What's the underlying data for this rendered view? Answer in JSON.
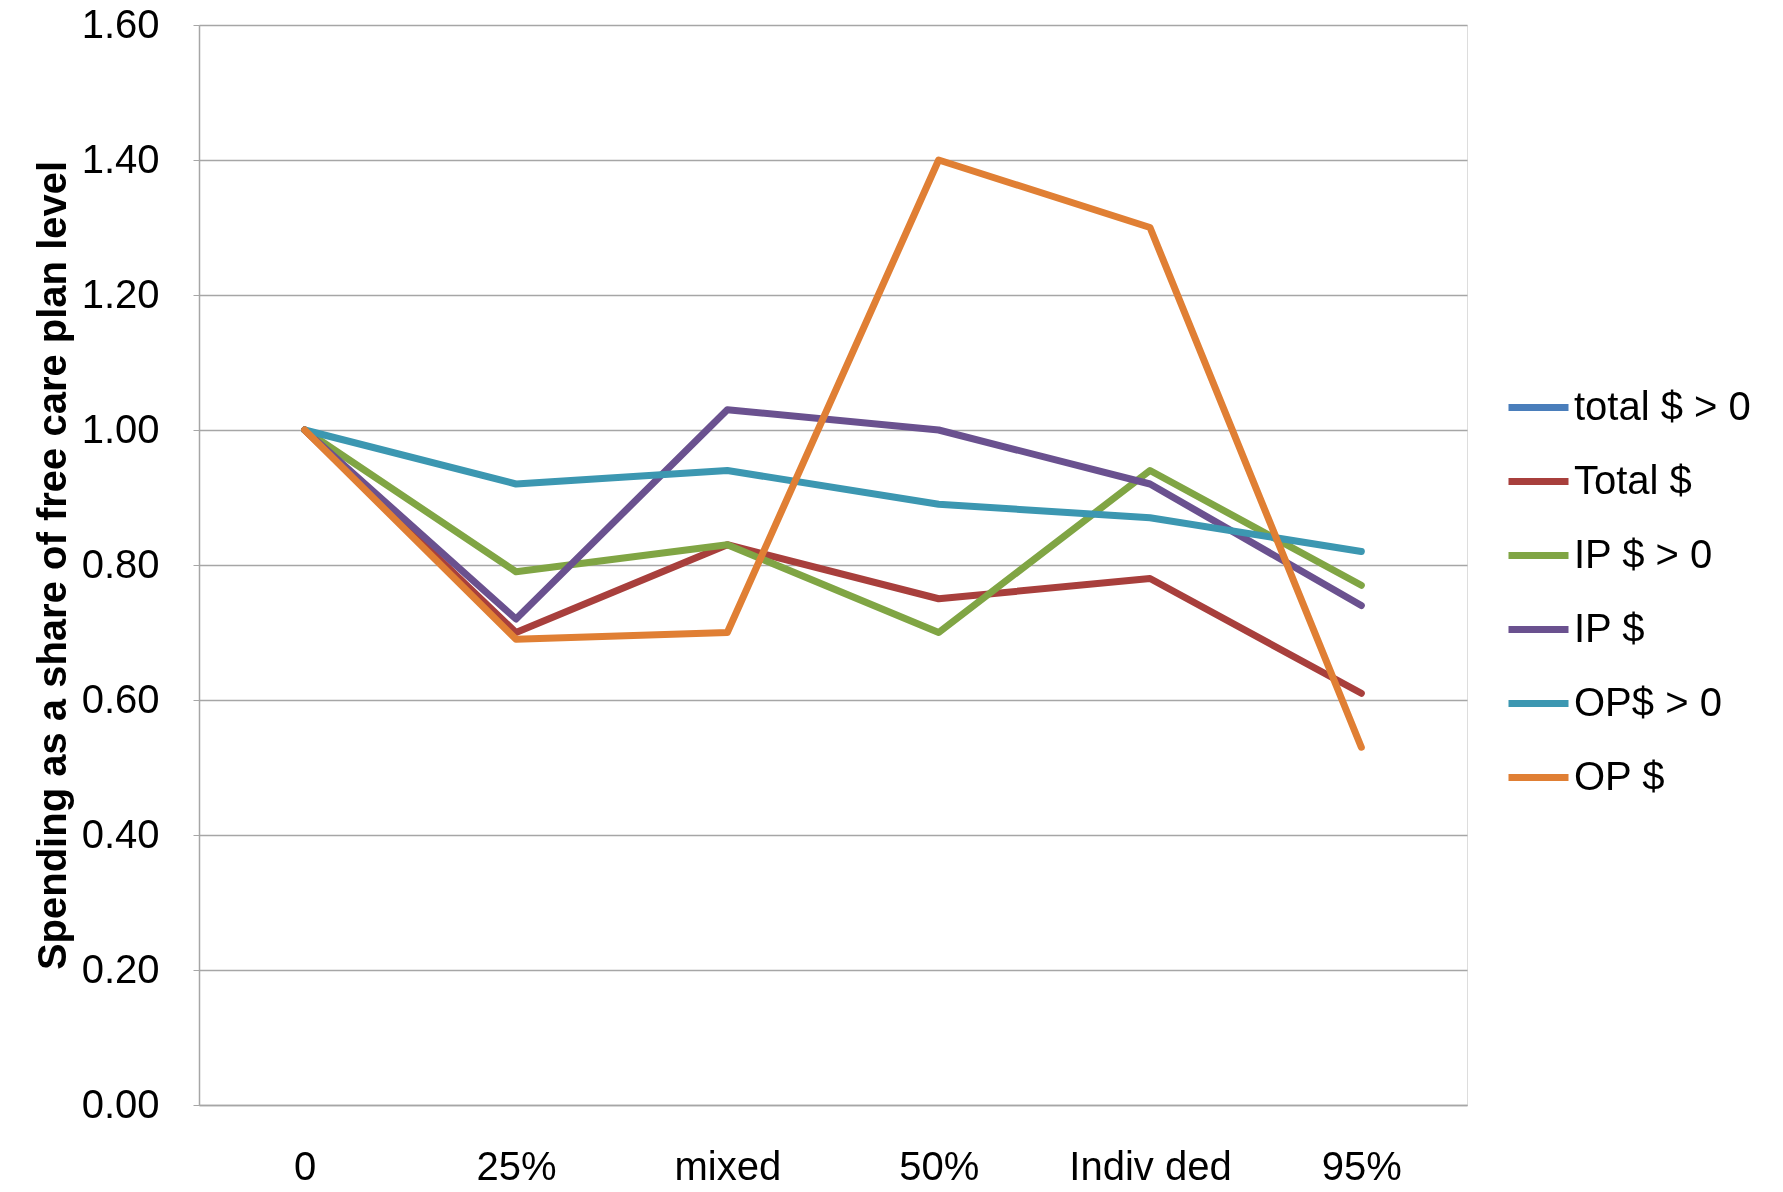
{
  "chart_data": {
    "type": "line",
    "ylabel": "Spending as a share of free care plan level",
    "categories": [
      "0",
      "25%",
      "mixed",
      "50%",
      "Indiv ded",
      "95%"
    ],
    "series": [
      {
        "name": "total $ > 0",
        "color": "#4a7ebb",
        "values": [
          null,
          null,
          null,
          null,
          null,
          null
        ]
      },
      {
        "name": "Total $",
        "color": "#a83f3c",
        "values": [
          1.0,
          0.7,
          0.83,
          0.75,
          0.78,
          0.61
        ]
      },
      {
        "name": "IP $ > 0",
        "color": "#80a544",
        "values": [
          1.0,
          0.79,
          0.83,
          0.7,
          0.94,
          0.77
        ]
      },
      {
        "name": "IP $",
        "color": "#6a518f",
        "values": [
          1.0,
          0.72,
          1.03,
          1.0,
          0.92,
          0.74
        ]
      },
      {
        "name": "OP$ > 0",
        "color": "#3c97b1",
        "values": [
          1.0,
          0.92,
          0.94,
          0.89,
          0.87,
          0.82
        ]
      },
      {
        "name": "OP $",
        "color": "#e07f34",
        "values": [
          1.0,
          0.69,
          0.7,
          1.4,
          1.3,
          0.53
        ]
      }
    ],
    "ylim": [
      0,
      1.6
    ],
    "yticks": [
      {
        "value": 0,
        "label": "0.00"
      },
      {
        "value": 0.2,
        "label": "0.20"
      },
      {
        "value": 0.4,
        "label": "0.40"
      },
      {
        "value": 0.6,
        "label": "0.60"
      },
      {
        "value": 0.8,
        "label": "0.80"
      },
      {
        "value": 1.0,
        "label": "1.00"
      },
      {
        "value": 1.2,
        "label": "1.20"
      },
      {
        "value": 1.4,
        "label": "1.40"
      },
      {
        "value": 1.6,
        "label": "1.60"
      }
    ],
    "grid": "y",
    "legend": "right",
    "line_style": "solid"
  }
}
